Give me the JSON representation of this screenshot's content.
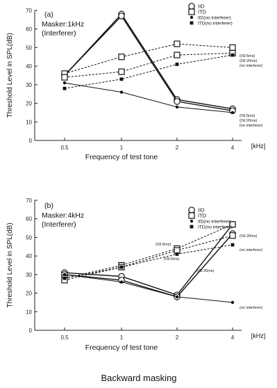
{
  "caption": "Backward masking",
  "chart_data": [
    {
      "type": "line",
      "panel_label": "(a)",
      "masker": "Masker:1kHz",
      "interferer": "(Interferer)",
      "xlabel": "Frequency of test tone",
      "x_unit": "[kHz]",
      "ylabel": "Threshold Level in SPL(dB)",
      "x": [
        0.5,
        1,
        2,
        4
      ],
      "x_tick_labels": [
        "0.5",
        "1",
        "2",
        "4"
      ],
      "ylim": [
        0,
        70
      ],
      "y_ticks": [
        "0",
        "10",
        "20",
        "30",
        "40",
        "50",
        "60",
        "70"
      ],
      "legend": [
        "IID",
        "ITD",
        "IID(no interferer)",
        "ITD(no interferer)"
      ],
      "series": [
        {
          "marker": "open-circle",
          "line": "solid",
          "label": "(ISI:5ms)",
          "values": [
            35,
            68,
            22,
            17
          ]
        },
        {
          "marker": "open-circle",
          "line": "solid",
          "label": "(ISI:20ms)",
          "values": [
            35,
            67,
            21,
            16
          ]
        },
        {
          "marker": "open-square",
          "line": "dashed",
          "label": "(ISI:5ms)",
          "values": [
            36,
            45,
            52,
            50
          ]
        },
        {
          "marker": "open-square",
          "line": "dashed",
          "label": "(ISI:20ms)",
          "values": [
            34,
            37,
            46,
            47
          ]
        },
        {
          "marker": "filled-circle",
          "line": "solid",
          "label": "(no interferer)",
          "values": [
            31,
            26,
            18,
            15
          ]
        },
        {
          "marker": "filled-square",
          "line": "dashed",
          "label": "(no interferer)",
          "values": [
            28,
            33,
            41,
            46
          ]
        }
      ]
    },
    {
      "type": "line",
      "panel_label": "(b)",
      "masker": "Masker:4kHz",
      "interferer": "(Interferer)",
      "xlabel": "Frequency of test tone",
      "x_unit": "[kHz]",
      "ylabel": "Threshold Level in SPL(dB)",
      "x": [
        0.5,
        1,
        2,
        4
      ],
      "x_tick_labels": [
        "0.5",
        "1",
        "2",
        "4"
      ],
      "ylim": [
        0,
        70
      ],
      "y_ticks": [
        "0",
        "10",
        "20",
        "30",
        "40",
        "50",
        "60",
        "70"
      ],
      "legend": [
        "IID",
        "ITD",
        "IID(no interferer)",
        "ITD(no interferer)"
      ],
      "series": [
        {
          "marker": "open-circle",
          "line": "solid",
          "label": "(ISI:5ms)",
          "values": [
            31,
            29,
            19,
            57
          ]
        },
        {
          "marker": "open-circle",
          "line": "solid",
          "label": "(ISI:20ms)",
          "values": [
            30,
            27,
            18,
            52
          ]
        },
        {
          "marker": "open-square",
          "line": "dashed",
          "label": "(ISI:5ms)",
          "values": [
            28,
            35,
            44,
            57
          ]
        },
        {
          "marker": "open-square",
          "line": "dashed",
          "label": "(ISI:20ms)",
          "values": [
            27,
            34,
            43,
            51
          ]
        },
        {
          "marker": "filled-circle",
          "line": "solid",
          "label": "(no interferer)",
          "values": [
            30,
            26,
            18,
            15
          ]
        },
        {
          "marker": "filled-square",
          "line": "dashed",
          "label": "(no interferer)",
          "values": [
            28,
            34,
            41,
            46
          ]
        }
      ]
    }
  ]
}
